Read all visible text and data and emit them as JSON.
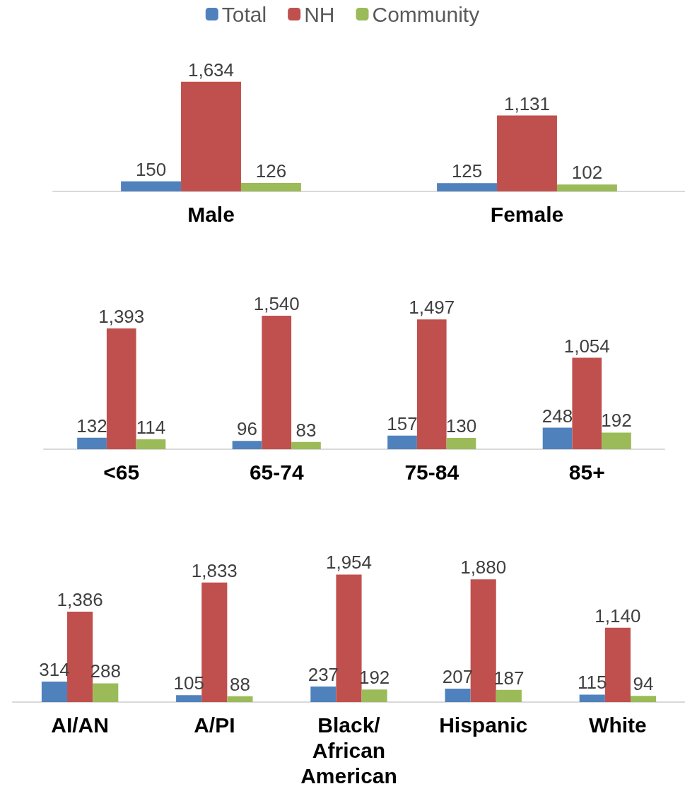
{
  "chart_data": [
    {
      "type": "bar",
      "categories": [
        "Male",
        "Female"
      ],
      "legend": "top",
      "series": [
        {
          "name": "Total",
          "color": "#4f81bd",
          "values": [
            150,
            125
          ],
          "value_labels": [
            "150",
            "125"
          ]
        },
        {
          "name": "NH",
          "color": "#c0504d",
          "values": [
            1634,
            1131
          ],
          "value_labels": [
            "1,634",
            "1,131"
          ]
        },
        {
          "name": "Community",
          "color": "#9bbb59",
          "values": [
            126,
            102
          ],
          "value_labels": [
            "126",
            "102"
          ]
        }
      ]
    },
    {
      "type": "bar",
      "categories": [
        "<65",
        "65-74",
        "75-84",
        "85+"
      ],
      "series": [
        {
          "color": "#4f81bd",
          "values": [
            132,
            96,
            157,
            248
          ],
          "value_labels": [
            "132",
            "96",
            "157",
            "248"
          ]
        },
        {
          "color": "#c0504d",
          "values": [
            1393,
            1540,
            1497,
            1054
          ],
          "value_labels": [
            "1,393",
            "1,540",
            "1,497",
            "1,054"
          ]
        },
        {
          "color": "#9bbb59",
          "values": [
            114,
            83,
            130,
            192
          ],
          "value_labels": [
            "114",
            "83",
            "130",
            "192"
          ]
        }
      ]
    },
    {
      "type": "bar",
      "categories": [
        "AI/AN",
        "A/PI",
        "Black/\nAfrican\nAmerican",
        "Hispanic",
        "White"
      ],
      "series": [
        {
          "color": "#4f81bd",
          "values": [
            314,
            105,
            237,
            207,
            115
          ],
          "value_labels": [
            "314",
            "105",
            "237",
            "207",
            "115"
          ]
        },
        {
          "color": "#c0504d",
          "values": [
            1386,
            1833,
            1954,
            1880,
            1140
          ],
          "value_labels": [
            "1,386",
            "1,833",
            "1,954",
            "1,880",
            "1,140"
          ]
        },
        {
          "color": "#9bbb59",
          "values": [
            288,
            88,
            192,
            187,
            94
          ],
          "value_labels": [
            "288",
            "88",
            "192",
            "187",
            "94"
          ]
        }
      ]
    }
  ]
}
